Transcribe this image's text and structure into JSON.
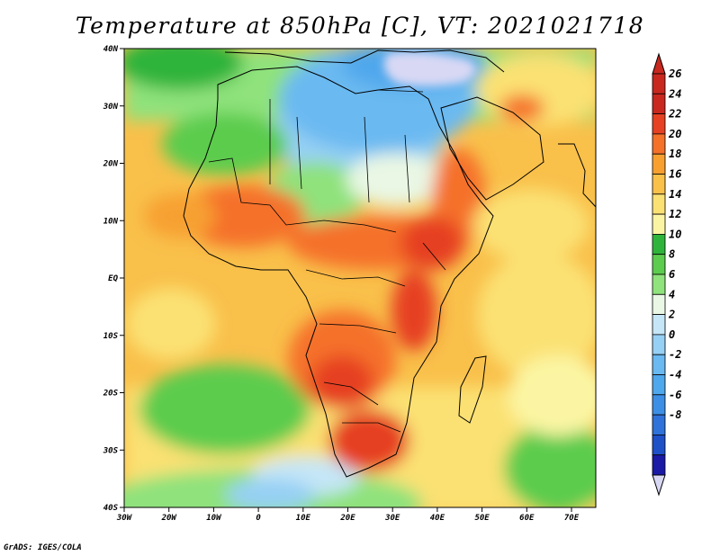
{
  "title": "Temperature at 850hPa [C], VT: 2021021718",
  "credit": "GrADS: IGES/COLA",
  "map": {
    "lat_ticks": [
      "40N",
      "30N",
      "20N",
      "10N",
      "EQ",
      "10S",
      "20S",
      "30S",
      "40S"
    ],
    "lon_ticks": [
      "30W",
      "20W",
      "10W",
      "0",
      "10E",
      "20E",
      "30E",
      "40E",
      "50E",
      "60E",
      "70E"
    ]
  },
  "colorbar": {
    "levels": [
      "-8",
      "-6",
      "-4",
      "-2",
      "0",
      "2",
      "4",
      "6",
      "8",
      "10",
      "12",
      "14",
      "16",
      "18",
      "20",
      "22",
      "24",
      "26"
    ],
    "colors": [
      "#1a1aa6",
      "#1e50c8",
      "#2f72d9",
      "#3d8fe6",
      "#4fa7ec",
      "#6ab9f1",
      "#96d0f4",
      "#c5e6f7",
      "#e9f7e4",
      "#8fe27c",
      "#5ccc4e",
      "#2fb43b",
      "#fbf5a3",
      "#fbe173",
      "#f9c04a",
      "#f7a030",
      "#f5712a",
      "#e64122",
      "#c8281e",
      "#c8281e"
    ],
    "under_color": "#d8d8f4",
    "over_color": "#c8281e"
  }
}
